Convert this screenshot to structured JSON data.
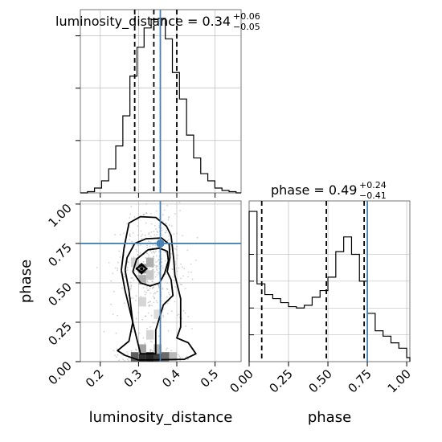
{
  "chart_data": {
    "type": "corner",
    "parameters": [
      "luminosity_distance",
      "phase"
    ],
    "axis_labels": {
      "x_left": "luminosity_distance",
      "x_right": "phase",
      "y_left": "phase"
    },
    "truth": {
      "luminosity_distance": 0.357,
      "phase": 0.75
    },
    "colors": {
      "truth": "#4682b4",
      "hist": "#000000",
      "grid": "#b0b0b0",
      "scatter": "#aaaaaa"
    },
    "panels": {
      "dist_hist": {
        "title_main": "luminosity_distance = 0.34",
        "title_sup": "+0.06",
        "title_sub": "−0.05",
        "xlim": [
          0.148,
          0.568
        ],
        "quantiles": [
          0.29,
          0.34,
          0.4
        ],
        "edges": [
          0.148,
          0.1665,
          0.185,
          0.2035,
          0.222,
          0.2405,
          0.259,
          0.2775,
          0.296,
          0.3145,
          0.333,
          0.3515,
          0.37,
          0.3885,
          0.407,
          0.4255,
          0.444,
          0.4625,
          0.481,
          0.4995,
          0.518,
          0.5365,
          0.555,
          0.568
        ],
        "counts": [
          0,
          1,
          4,
          10,
          20,
          39,
          64,
          97,
          121,
          137,
          144,
          145,
          128,
          100,
          78,
          48,
          29,
          16,
          10,
          4,
          2,
          1,
          0
        ],
        "grid_x": [
          0.2,
          0.3,
          0.4,
          0.5
        ],
        "grid_y_count": [
          43.5,
          87,
          130.5
        ]
      },
      "phase_hist": {
        "title_main": "phase = 0.49",
        "title_sup": "+0.24",
        "title_sub": "−0.41",
        "xlim": [
          0.0,
          1.02
        ],
        "quantiles": [
          0.08,
          0.49,
          0.73
        ],
        "edges": [
          0.0,
          0.05,
          0.1,
          0.15,
          0.2,
          0.25,
          0.3,
          0.35,
          0.4,
          0.45,
          0.5,
          0.55,
          0.6,
          0.65,
          0.7,
          0.75,
          0.8,
          0.85,
          0.9,
          0.95,
          1.0,
          1.02
        ],
        "counts": [
          112,
          58,
          50,
          47,
          44,
          41,
          40,
          42,
          48,
          53,
          63,
          82,
          93,
          80,
          60,
          36,
          23,
          19,
          14,
          10,
          3
        ],
        "grid_x": [
          0.25,
          0.5,
          0.75,
          1.0
        ],
        "grid_y_count": [
          20,
          40,
          60,
          80
        ]
      },
      "joint": {
        "xlim": [
          0.148,
          0.568
        ],
        "ylim": [
          0.0,
          1.02
        ],
        "grid_x": [
          0.2,
          0.3,
          0.4,
          0.5
        ],
        "grid_y": [
          0.25,
          0.5,
          0.75,
          1.0
        ],
        "peak_marker": {
          "x": 0.308,
          "y": 0.59
        },
        "density_cells": [
          {
            "x": 0.31,
            "y": 0.59,
            "v": 0.45
          },
          {
            "x": 0.33,
            "y": 0.63,
            "v": 0.35
          },
          {
            "x": 0.31,
            "y": 0.52,
            "v": 0.35
          },
          {
            "x": 0.33,
            "y": 0.55,
            "v": 0.25
          },
          {
            "x": 0.29,
            "y": 0.63,
            "v": 0.2
          },
          {
            "x": 0.33,
            "y": 0.03,
            "v": 0.95
          },
          {
            "x": 0.31,
            "y": 0.03,
            "v": 0.9
          },
          {
            "x": 0.35,
            "y": 0.03,
            "v": 0.85
          },
          {
            "x": 0.29,
            "y": 0.03,
            "v": 0.7
          },
          {
            "x": 0.37,
            "y": 0.03,
            "v": 0.65
          },
          {
            "x": 0.39,
            "y": 0.03,
            "v": 0.3
          },
          {
            "x": 0.31,
            "y": 0.08,
            "v": 0.4
          },
          {
            "x": 0.35,
            "y": 0.08,
            "v": 0.35
          },
          {
            "x": 0.33,
            "y": 0.17,
            "v": 0.18
          },
          {
            "x": 0.35,
            "y": 0.3,
            "v": 0.15
          },
          {
            "x": 0.31,
            "y": 0.38,
            "v": 0.18
          }
        ],
        "contours": [
          [
            [
              0.293,
              0.59
            ],
            [
              0.308,
              0.61
            ],
            [
              0.322,
              0.59
            ],
            [
              0.308,
              0.57
            ],
            [
              0.293,
              0.59
            ]
          ],
          [
            [
              0.285,
              0.57
            ],
            [
              0.295,
              0.65
            ],
            [
              0.325,
              0.71
            ],
            [
              0.355,
              0.72
            ],
            [
              0.375,
              0.7
            ],
            [
              0.378,
              0.64
            ],
            [
              0.368,
              0.56
            ],
            [
              0.355,
              0.5
            ],
            [
              0.33,
              0.48
            ],
            [
              0.305,
              0.5
            ],
            [
              0.285,
              0.57
            ]
          ],
          [
            [
              0.265,
              0.58
            ],
            [
              0.27,
              0.66
            ],
            [
              0.29,
              0.75
            ],
            [
              0.32,
              0.78
            ],
            [
              0.36,
              0.785
            ],
            [
              0.38,
              0.745
            ],
            [
              0.382,
              0.66
            ],
            [
              0.375,
              0.57
            ],
            [
              0.385,
              0.52
            ],
            [
              0.39,
              0.42
            ],
            [
              0.365,
              0.36
            ],
            [
              0.345,
              0.2
            ],
            [
              0.345,
              0.05
            ],
            [
              0.305,
              0.05
            ],
            [
              0.285,
              0.25
            ],
            [
              0.275,
              0.45
            ],
            [
              0.265,
              0.58
            ]
          ],
          [
            [
              0.255,
              0.58
            ],
            [
              0.262,
              0.72
            ],
            [
              0.275,
              0.88
            ],
            [
              0.305,
              0.92
            ],
            [
              0.345,
              0.915
            ],
            [
              0.373,
              0.86
            ],
            [
              0.385,
              0.8
            ],
            [
              0.392,
              0.65
            ],
            [
              0.395,
              0.55
            ],
            [
              0.41,
              0.4
            ],
            [
              0.41,
              0.22
            ],
            [
              0.4,
              0.15
            ],
            [
              0.43,
              0.12
            ],
            [
              0.45,
              0.05
            ],
            [
              0.42,
              0.015
            ],
            [
              0.3,
              0.01
            ],
            [
              0.265,
              0.04
            ],
            [
              0.245,
              0.07
            ],
            [
              0.275,
              0.13
            ],
            [
              0.285,
              0.25
            ],
            [
              0.265,
              0.45
            ],
            [
              0.255,
              0.58
            ]
          ]
        ]
      }
    },
    "ticks": {
      "dist_x": [
        "0.2",
        "0.3",
        "0.4",
        "0.5"
      ],
      "phase_x": [
        "0.00",
        "0.25",
        "0.50",
        "0.75",
        "1.00"
      ],
      "phase_y": [
        "0.00",
        "0.25",
        "0.50",
        "0.75",
        "1.00"
      ]
    }
  }
}
